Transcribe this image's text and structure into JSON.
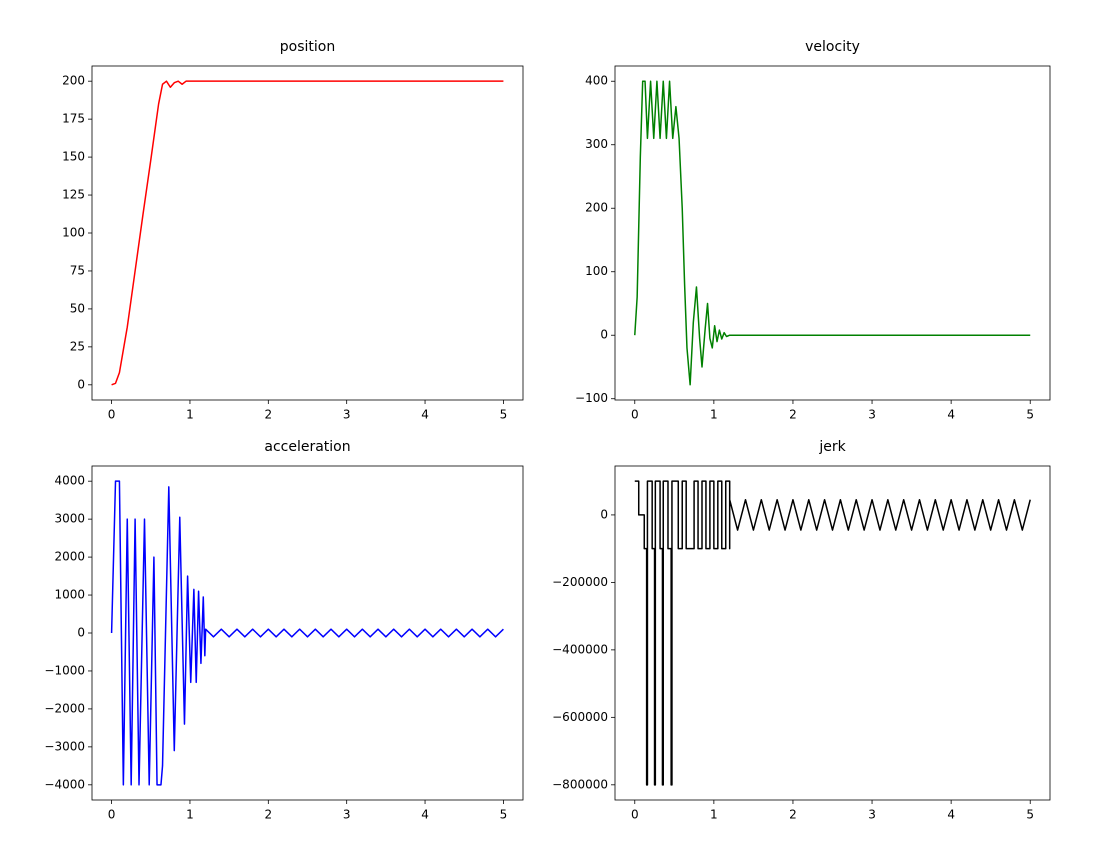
{
  "chart_data": [
    {
      "type": "line",
      "title": "position",
      "x": [
        0,
        0.05,
        0.1,
        0.2,
        0.3,
        0.4,
        0.5,
        0.6,
        0.65,
        0.7,
        0.75,
        0.8,
        0.85,
        0.9,
        0.95,
        1.0,
        1.5,
        2,
        3,
        4,
        5
      ],
      "values": [
        0,
        1,
        8,
        38,
        75,
        112,
        148,
        185,
        198,
        200,
        196,
        199,
        200,
        198,
        200,
        200,
        200,
        200,
        200,
        200,
        200
      ],
      "color": "#ff0000",
      "xlim": [
        -0.25,
        5.25
      ],
      "ylim": [
        -10,
        210
      ],
      "xticks": [
        0,
        1,
        2,
        3,
        4,
        5
      ],
      "yticks": [
        0,
        25,
        50,
        75,
        100,
        125,
        150,
        175,
        200
      ]
    },
    {
      "type": "line",
      "title": "velocity",
      "x": [
        0,
        0.03,
        0.07,
        0.1,
        0.13,
        0.16,
        0.2,
        0.24,
        0.28,
        0.32,
        0.36,
        0.4,
        0.44,
        0.48,
        0.52,
        0.56,
        0.6,
        0.63,
        0.66,
        0.7,
        0.74,
        0.78,
        0.82,
        0.85,
        0.89,
        0.92,
        0.95,
        0.98,
        1.01,
        1.04,
        1.07,
        1.1,
        1.13,
        1.16,
        1.2,
        2,
        3,
        4,
        5
      ],
      "values": [
        0,
        60,
        280,
        400,
        400,
        310,
        400,
        310,
        400,
        310,
        400,
        310,
        400,
        310,
        360,
        310,
        200,
        80,
        -20,
        -78,
        20,
        76,
        -5,
        -50,
        10,
        50,
        -5,
        -20,
        15,
        -10,
        8,
        -6,
        4,
        -2,
        0,
        0,
        0,
        0,
        0
      ],
      "color": "#008000",
      "xlim": [
        -0.25,
        5.25
      ],
      "ylim": [
        -102,
        424
      ],
      "xticks": [
        0,
        1,
        2,
        3,
        4,
        5
      ],
      "yticks": [
        {
          "value": -100,
          "label": "−100"
        },
        0,
        100,
        200,
        300,
        400
      ]
    },
    {
      "type": "line",
      "title": "acceleration",
      "x": [
        0,
        0.05,
        0.1,
        0.15,
        0.2,
        0.25,
        0.3,
        0.35,
        0.42,
        0.48,
        0.54,
        0.58,
        0.63,
        0.65,
        0.73,
        0.8,
        0.87,
        0.93,
        0.97,
        1.01,
        1.05,
        1.08,
        1.11,
        1.14,
        1.17,
        1.19,
        1.2,
        1.3,
        1.4,
        1.5,
        1.6,
        1.7,
        1.8,
        1.9,
        2.0,
        2.1,
        2.2,
        2.3,
        2.4,
        2.5,
        2.6,
        2.7,
        2.8,
        2.9,
        3.0,
        3.1,
        3.2,
        3.3,
        3.4,
        3.5,
        3.6,
        3.7,
        3.8,
        3.9,
        4.0,
        4.1,
        4.2,
        4.3,
        4.4,
        4.5,
        4.6,
        4.7,
        4.8,
        4.9,
        5.0
      ],
      "values": [
        0,
        4000,
        4000,
        -4000,
        3000,
        -4000,
        3000,
        -4000,
        3000,
        -4000,
        2000,
        -4000,
        -4000,
        -3500,
        3850,
        -3100,
        3050,
        -2400,
        1500,
        -1300,
        1150,
        -1300,
        1100,
        -800,
        950,
        -600,
        100,
        -100,
        100,
        -100,
        100,
        -100,
        100,
        -100,
        100,
        -100,
        100,
        -100,
        100,
        -100,
        100,
        -100,
        100,
        -100,
        100,
        -100,
        100,
        -100,
        100,
        -100,
        100,
        -100,
        100,
        -100,
        100,
        -100,
        100,
        -100,
        100,
        -100,
        100,
        -100,
        100,
        -100,
        100
      ],
      "color": "#0000ff",
      "xlim": [
        -0.25,
        5.25
      ],
      "ylim": [
        -4400,
        4400
      ],
      "xticks": [
        0,
        1,
        2,
        3,
        4,
        5
      ],
      "yticks": [
        {
          "value": -4000,
          "label": "−4000"
        },
        {
          "value": -3000,
          "label": "−3000"
        },
        {
          "value": -2000,
          "label": "−2000"
        },
        {
          "value": -1000,
          "label": "−1000"
        },
        0,
        1000,
        2000,
        3000,
        4000
      ]
    },
    {
      "type": "line",
      "title": "jerk",
      "x": [
        0,
        0.05,
        0.05,
        0.12,
        0.12,
        0.15,
        0.15,
        0.16,
        0.16,
        0.22,
        0.22,
        0.25,
        0.25,
        0.26,
        0.26,
        0.32,
        0.32,
        0.35,
        0.35,
        0.36,
        0.36,
        0.42,
        0.42,
        0.46,
        0.46,
        0.47,
        0.47,
        0.55,
        0.55,
        0.6,
        0.6,
        0.65,
        0.65,
        0.75,
        0.75,
        0.8,
        0.8,
        0.85,
        0.85,
        0.9,
        0.9,
        0.95,
        0.95,
        1.0,
        1.0,
        1.05,
        1.05,
        1.1,
        1.1,
        1.15,
        1.15,
        1.2,
        1.2,
        1.2,
        1.3,
        1.4,
        1.5,
        1.6,
        1.7,
        1.8,
        1.9,
        2.0,
        2.1,
        2.2,
        2.3,
        2.4,
        2.5,
        2.6,
        2.7,
        2.8,
        2.9,
        3.0,
        3.1,
        3.2,
        3.3,
        3.4,
        3.5,
        3.6,
        3.7,
        3.8,
        3.9,
        4.0,
        4.1,
        4.2,
        4.3,
        4.4,
        4.5,
        4.6,
        4.7,
        4.8,
        4.9,
        5.0
      ],
      "values": [
        100000,
        100000,
        0,
        0,
        -100000,
        -100000,
        -800000,
        -800000,
        100000,
        100000,
        -100000,
        -100000,
        -800000,
        -800000,
        100000,
        100000,
        -100000,
        -100000,
        -800000,
        -800000,
        100000,
        100000,
        -100000,
        -100000,
        -800000,
        -800000,
        100000,
        100000,
        -100000,
        -100000,
        100000,
        100000,
        -100000,
        -100000,
        100000,
        100000,
        -100000,
        -100000,
        100000,
        100000,
        -100000,
        -100000,
        100000,
        100000,
        -100000,
        -100000,
        100000,
        100000,
        -100000,
        -100000,
        100000,
        100000,
        -100000,
        45000,
        -45000,
        45000,
        -45000,
        45000,
        -45000,
        45000,
        -45000,
        45000,
        -45000,
        45000,
        -45000,
        45000,
        -45000,
        45000,
        -45000,
        45000,
        -45000,
        45000,
        -45000,
        45000,
        -45000,
        45000,
        -45000,
        45000,
        -45000,
        45000,
        -45000,
        45000,
        -45000,
        45000,
        -45000,
        45000,
        -45000,
        45000,
        -45000,
        45000,
        -45000,
        45000
      ],
      "color": "#000000",
      "xlim": [
        -0.25,
        5.25
      ],
      "ylim": [
        -845000,
        145000
      ],
      "xticks": [
        0,
        1,
        2,
        3,
        4,
        5
      ],
      "yticks": [
        {
          "value": -800000,
          "label": "−800000"
        },
        {
          "value": -600000,
          "label": "−600000"
        },
        {
          "value": -400000,
          "label": "−400000"
        },
        {
          "value": -200000,
          "label": "−200000"
        },
        0
      ]
    }
  ]
}
